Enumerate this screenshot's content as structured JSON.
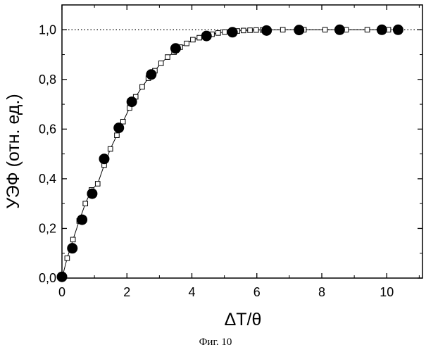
{
  "chart_data": {
    "type": "scatter",
    "xlabel": "ΔT/θ",
    "ylabel": "УЭФ (отн. ед.)",
    "caption": "Фиг. 10",
    "xlim": [
      0,
      11.1
    ],
    "ylim": [
      0,
      1.1
    ],
    "x_ticks": [
      0,
      2,
      4,
      6,
      8,
      10
    ],
    "y_ticks": [
      0.0,
      0.2,
      0.4,
      0.6,
      0.8,
      1.0
    ],
    "x_tick_labels": [
      "0",
      "2",
      "4",
      "6",
      "8",
      "10"
    ],
    "y_tick_labels": [
      "0,0",
      "0,2",
      "0,4",
      "0,6",
      "0,8",
      "1,0"
    ],
    "reference_line": {
      "y": 1.0,
      "style": "dotted"
    },
    "grid": false,
    "series": [
      {
        "marker": "filled-circle",
        "line": false,
        "color": "#000000",
        "points": [
          [
            0.0,
            0.005
          ],
          [
            0.32,
            0.12
          ],
          [
            0.62,
            0.235
          ],
          [
            0.93,
            0.34
          ],
          [
            1.3,
            0.48
          ],
          [
            1.75,
            0.605
          ],
          [
            2.15,
            0.71
          ],
          [
            2.75,
            0.82
          ],
          [
            3.5,
            0.925
          ],
          [
            4.45,
            0.975
          ],
          [
            5.25,
            0.99
          ],
          [
            6.3,
            0.997
          ],
          [
            7.3,
            0.999
          ],
          [
            8.55,
            1.0
          ],
          [
            9.85,
            1.0
          ],
          [
            10.35,
            1.0
          ]
        ]
      },
      {
        "marker": "open-square",
        "line": true,
        "color": "#000000",
        "points": [
          [
            0.0,
            0.0
          ],
          [
            0.16,
            0.08
          ],
          [
            0.34,
            0.155
          ],
          [
            0.53,
            0.23
          ],
          [
            0.72,
            0.3
          ],
          [
            0.91,
            0.355
          ],
          [
            1.1,
            0.38
          ],
          [
            1.3,
            0.455
          ],
          [
            1.49,
            0.52
          ],
          [
            1.69,
            0.575
          ],
          [
            1.88,
            0.63
          ],
          [
            2.08,
            0.685
          ],
          [
            2.27,
            0.73
          ],
          [
            2.47,
            0.77
          ],
          [
            2.66,
            0.805
          ],
          [
            2.86,
            0.835
          ],
          [
            3.05,
            0.865
          ],
          [
            3.25,
            0.89
          ],
          [
            3.45,
            0.91
          ],
          [
            3.64,
            0.93
          ],
          [
            3.84,
            0.945
          ],
          [
            4.03,
            0.96
          ],
          [
            4.23,
            0.968
          ],
          [
            4.42,
            0.975
          ],
          [
            4.62,
            0.982
          ],
          [
            4.81,
            0.987
          ],
          [
            5.01,
            0.991
          ],
          [
            5.2,
            0.993
          ],
          [
            5.4,
            0.995
          ],
          [
            5.59,
            0.997
          ],
          [
            5.79,
            0.998
          ],
          [
            5.98,
            0.999
          ],
          [
            6.18,
            0.999
          ],
          [
            6.8,
            1.0
          ],
          [
            7.45,
            1.0
          ],
          [
            8.1,
            1.0
          ],
          [
            8.75,
            1.0
          ],
          [
            9.4,
            1.0
          ],
          [
            10.05,
            1.0
          ]
        ]
      }
    ]
  }
}
